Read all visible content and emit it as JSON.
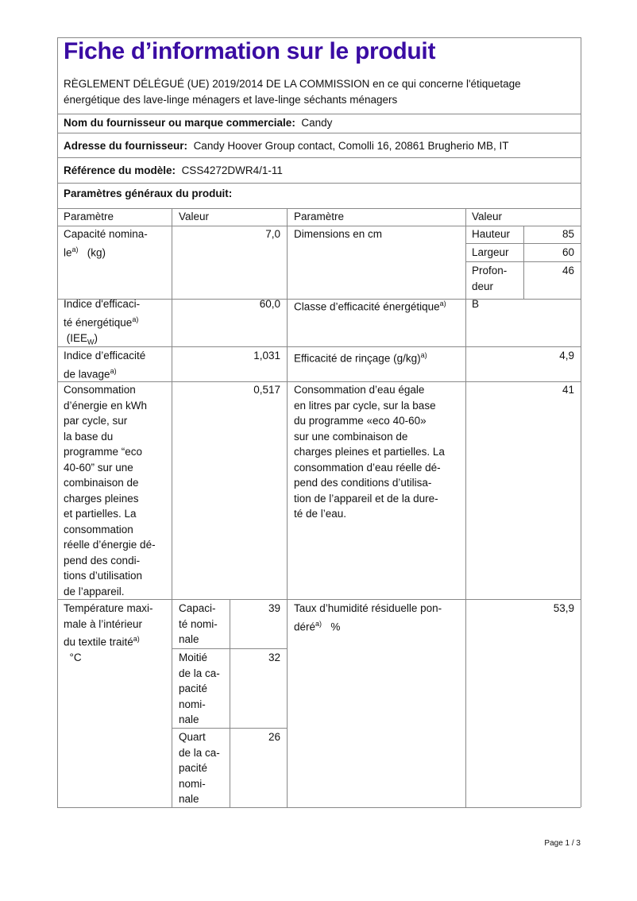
{
  "title": "Fiche d’information sur le produit",
  "regulation": "RÈGLEMENT DÉLÉGUÉ (UE) 2019/2014 DE LA COMMISSION en ce qui concerne l'étiquetage\nénergétique des lave-linge ménagers et lave-linge séchants ménagers",
  "supplier": {
    "label": "Nom du fournisseur ou marque commerciale:",
    "value": "Candy"
  },
  "address": {
    "label": "Adresse du fournisseur:",
    "value": "Candy Hoover Group contact, Comolli 16, 20861 Brugherio MB, IT"
  },
  "model": {
    "label": "Référence du modèle:",
    "value": "CSS4272DWR4/1-11"
  },
  "general_params": "Paramètres généraux du produit:",
  "table": {
    "headers": [
      "Paramètre",
      "Valeur",
      "Paramètre",
      "Valeur"
    ],
    "capacity": {
      "label": "Capacité nomina-\nle",
      "sup": "a)",
      "unit": "(kg)",
      "value": "7,0"
    },
    "dimensions": {
      "label": "Dimensions en cm",
      "rows": [
        {
          "label": "Hauteur",
          "value": "85"
        },
        {
          "label": "Largeur",
          "value": "60"
        },
        {
          "label": "Profon-\ndeur",
          "value": "46"
        }
      ]
    },
    "iee": {
      "label": "Indice d'efficaci-\nté énergétique",
      "sup": "a)",
      "label2": "(IEE",
      "sub": "W",
      "close": ")",
      "value": "60,0"
    },
    "energy_class": {
      "label": "Classe d’efficacité énergétique",
      "sup": "a)",
      "value": "B"
    },
    "washing": {
      "label": "Indice d’efficacité\nde lavage",
      "sup": "a)",
      "value": "1,031"
    },
    "rinsing": {
      "label": "Efficacité de rinçage (g/kg)",
      "sup": "a)",
      "value": "4,9"
    },
    "energy_consumption": {
      "label": "Consommation\nd’énergie en kWh\npar cycle, sur\nla base du\nprogramme “eco\n40-60” sur une\ncombinaison de\ncharges pleines\net partielles. La\nconsommation\nréelle d’énergie dé-\npend des condi-\ntions d’utilisation\nde l’appareil.",
      "value": "0,517"
    },
    "water_consumption": {
      "label": "Consommation d’eau égale\nen litres par cycle, sur la base\ndu programme «eco 40-60»\nsur une combinaison de\ncharges pleines et partielles. La\nconsommation d’eau réelle dé-\npend des conditions d’utilisa-\ntion de l’appareil et de la dure-\nté de l’eau.",
      "value": "41"
    },
    "temperature": {
      "label": "Température maxi-\nmale à l’intérieur\ndu textile traité",
      "sup": "a)",
      "unit": "°C",
      "rows": [
        {
          "label": "Capaci-\nté nomi-\nnale",
          "value": "39"
        },
        {
          "label": "Moitié\nde la ca-\npacité\nnomi-\nnale",
          "value": "32"
        },
        {
          "label": "Quart\nde la ca-\npacité\nnomi-\nnale",
          "value": "26"
        }
      ]
    },
    "humidity": {
      "label": "Taux d’humidité résiduelle pon-\ndéré",
      "sup": "a)",
      "unit": "%",
      "value": "53,9"
    }
  },
  "footer": {
    "page": "Page 1 / 3"
  },
  "colors": {
    "title": "#3a0ca3"
  }
}
